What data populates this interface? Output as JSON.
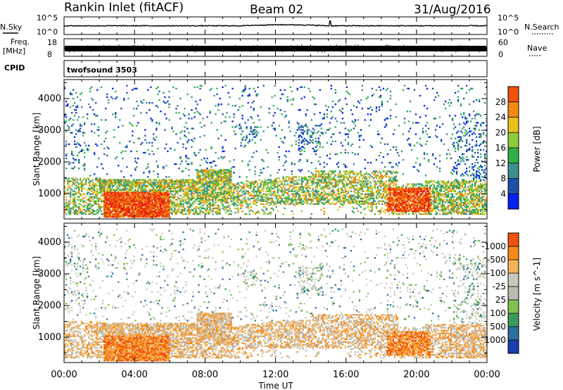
{
  "header": {
    "station": "Rankin Inlet (fitACF)",
    "beam": "Beam 02",
    "date": "31/Aug/2016"
  },
  "aux": {
    "nsky_label": "N.Sky",
    "nsky_ticks": [
      "10^5",
      "10^0"
    ],
    "nsearch_label": "N.Search",
    "nsearch_ticks": [
      "10^5",
      "10^0"
    ],
    "freq_label_1": "Freq.",
    "freq_label_2": "[MHz]",
    "freq_ticks": [
      "18",
      "8"
    ],
    "nave_label": "Nave",
    "nave_ticks": [
      "60",
      "0"
    ],
    "cpid_label": "CPID",
    "cpid_value": "twofsound 3503"
  },
  "colors": {
    "power_scale": [
      "#0022ee",
      "#1f4fa8",
      "#3c8f8c",
      "#2fae4a",
      "#8ccd3a",
      "#e8c21a",
      "#f08a12",
      "#f0520e",
      "#e81c0c"
    ],
    "velocity_scale": [
      "#e3130d",
      "#f0520e",
      "#f58c1a",
      "#f4b35a",
      "#c8c8be",
      "#b9b9b0",
      "#7fc34e",
      "#3b9a5b",
      "#2c6fa0",
      "#1a3fae"
    ]
  },
  "chart_data": {
    "type": "heatmap",
    "xlabel": "Time UT",
    "x_ticks": [
      "00:00",
      "04:00",
      "08:00",
      "12:00",
      "16:00",
      "20:00",
      "00:00"
    ],
    "x_range_hours": [
      0,
      24
    ],
    "panels": [
      {
        "name": "power",
        "ylabel": "Slant Range [km]",
        "y_ticks": [
          1000,
          2000,
          3000,
          4000
        ],
        "ylim": [
          200,
          4600
        ],
        "colorbar_label": "Power [dB]",
        "colorbar_ticks": [
          "4",
          "8",
          "12",
          "16",
          "20",
          "24",
          "28"
        ],
        "colorbar_range": [
          0,
          32
        ]
      },
      {
        "name": "velocity",
        "ylabel": "Slant Range [km]",
        "y_ticks": [
          1000,
          2000,
          3000,
          4000
        ],
        "ylim": [
          200,
          4600
        ],
        "colorbar_label": "Velocity [m s^-1]",
        "colorbar_ticks": [
          "-1000",
          "-500",
          "-100",
          "-25",
          "25",
          "100",
          "500",
          "1000"
        ]
      }
    ]
  }
}
